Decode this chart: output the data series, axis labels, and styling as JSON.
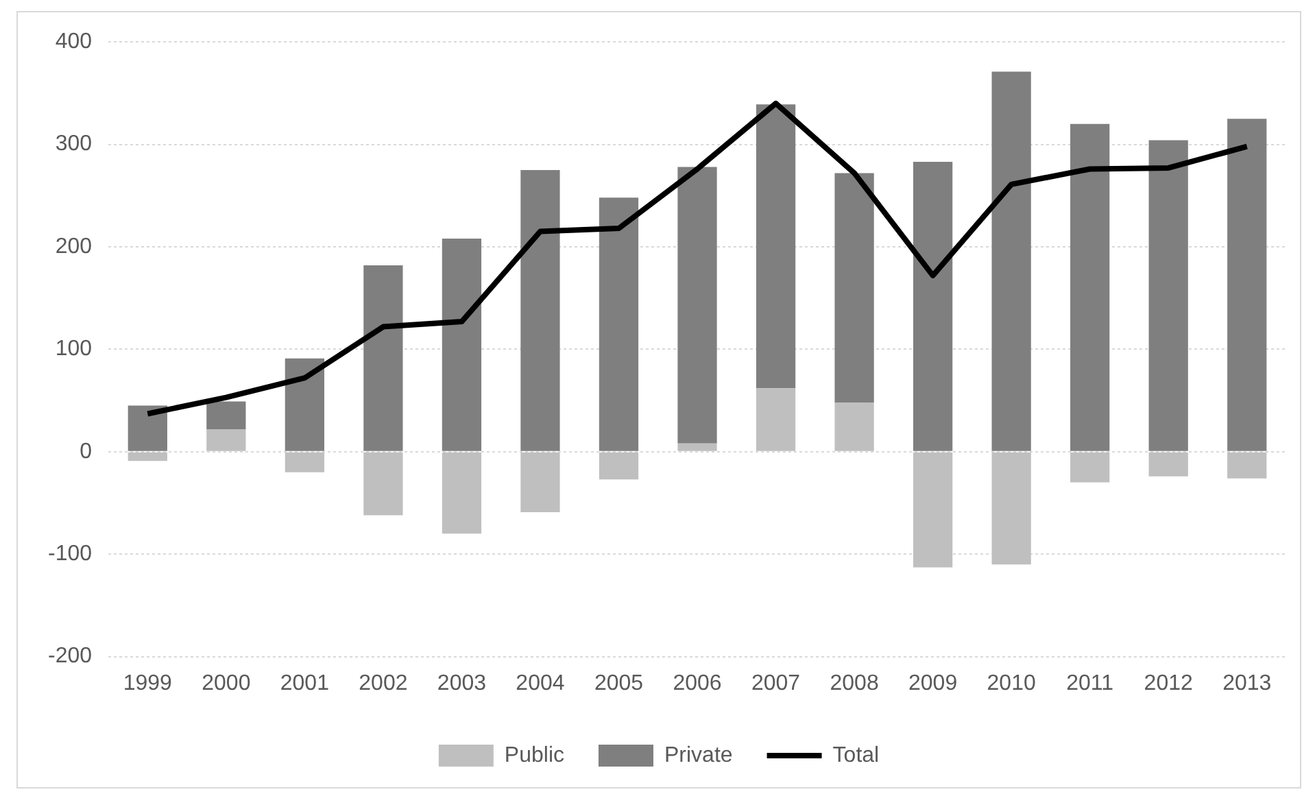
{
  "chart_data": {
    "type": "bar",
    "stacked": true,
    "grid": "y",
    "legend": "bottom",
    "categories": [
      "1999",
      "2000",
      "2001",
      "2002",
      "2003",
      "2004",
      "2005",
      "2006",
      "2007",
      "2008",
      "2009",
      "2010",
      "2011",
      "2012",
      "2013"
    ],
    "series": [
      {
        "name": "Public",
        "color": "#bfbfbf",
        "values": [
          -9,
          22,
          -20,
          -62,
          -80,
          -59,
          -27,
          8,
          62,
          48,
          -113,
          -110,
          -30,
          -24,
          -26
        ]
      },
      {
        "name": "Private",
        "color": "#7f7f7f",
        "values": [
          45,
          27,
          91,
          182,
          208,
          275,
          248,
          270,
          277,
          224,
          283,
          371,
          320,
          304,
          325
        ]
      },
      {
        "name": "Total",
        "type": "line",
        "color": "#000000",
        "values": [
          37,
          53,
          72,
          122,
          127,
          215,
          218,
          276,
          340,
          272,
          172,
          261,
          276,
          277,
          298
        ]
      }
    ],
    "ylim": [
      -200,
      400
    ],
    "yticks": [
      -200,
      -100,
      0,
      100,
      200,
      300,
      400
    ]
  }
}
